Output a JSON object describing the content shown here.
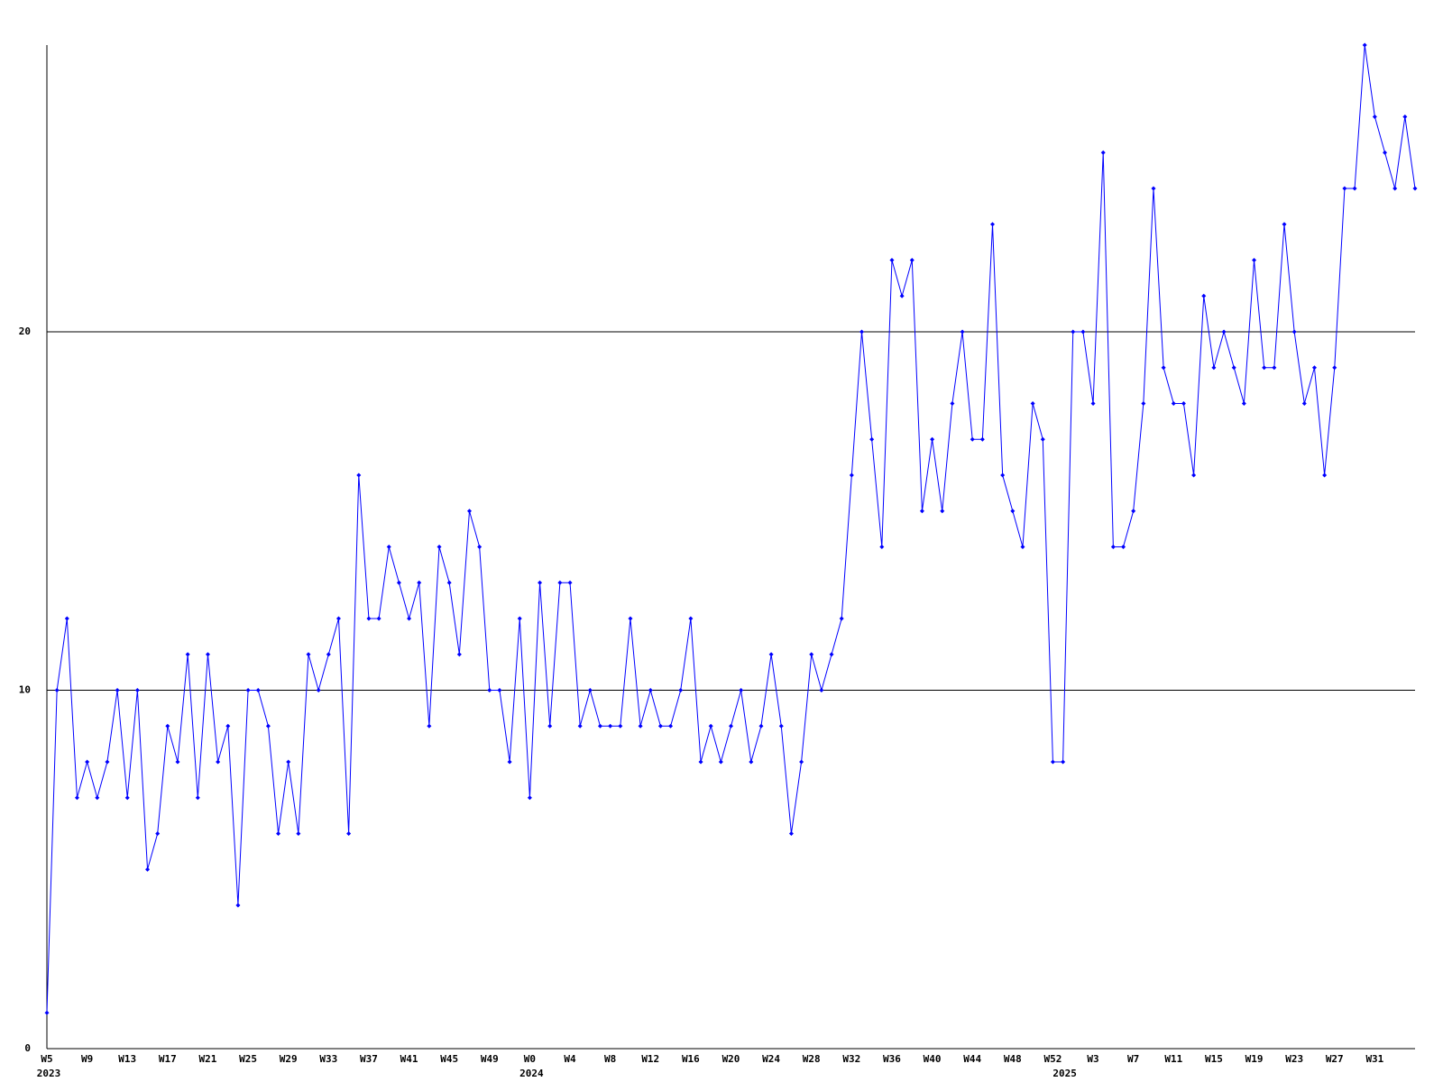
{
  "chart_data": {
    "type": "line",
    "categories": [
      "W5",
      null,
      null,
      null,
      "W9",
      null,
      null,
      null,
      "W13",
      null,
      null,
      null,
      "W17",
      null,
      null,
      null,
      "W21",
      null,
      null,
      null,
      "W25",
      null,
      null,
      null,
      "W29",
      null,
      null,
      null,
      "W33",
      null,
      null,
      null,
      "W37",
      null,
      null,
      null,
      "W41",
      null,
      null,
      null,
      "W45",
      null,
      null,
      null,
      "W49",
      null,
      null,
      null,
      "W0",
      null,
      null,
      null,
      "W4",
      null,
      null,
      null,
      "W8",
      null,
      null,
      null,
      "W12",
      null,
      null,
      null,
      "W16",
      null,
      null,
      null,
      "W20",
      null,
      null,
      null,
      "W24",
      null,
      null,
      null,
      "W28",
      null,
      null,
      null,
      "W32",
      null,
      null,
      null,
      "W36",
      null,
      null,
      null,
      "W40",
      null,
      null,
      null,
      "W44",
      null,
      null,
      null,
      "W48",
      null,
      null,
      null,
      "W52",
      null,
      null,
      null,
      "W3",
      null,
      null,
      null,
      "W7",
      null,
      null,
      null,
      "W11",
      null,
      null,
      null,
      "W15",
      null,
      null,
      null,
      "W19",
      null,
      null,
      null,
      "W23",
      null,
      null,
      null,
      "W27",
      null,
      null,
      null,
      "W31",
      null,
      null,
      null,
      null
    ],
    "year_labels": [
      "2023",
      null,
      null,
      null,
      null,
      null,
      null,
      null,
      null,
      null,
      null,
      null,
      null,
      null,
      null,
      null,
      null,
      null,
      null,
      null,
      null,
      null,
      null,
      null,
      null,
      null,
      null,
      null,
      null,
      null,
      null,
      null,
      null,
      null,
      null,
      null,
      null,
      null,
      null,
      null,
      null,
      null,
      null,
      null,
      null,
      null,
      null,
      null,
      "2024",
      null,
      null,
      null,
      null,
      null,
      null,
      null,
      null,
      null,
      null,
      null,
      null,
      null,
      null,
      null,
      null,
      null,
      null,
      null,
      null,
      null,
      null,
      null,
      null,
      null,
      null,
      null,
      null,
      null,
      null,
      null,
      null,
      null,
      null,
      null,
      null,
      null,
      null,
      null,
      null,
      null,
      null,
      null,
      null,
      null,
      null,
      null,
      null,
      null,
      null,
      null,
      null,
      "2025",
      null,
      null,
      null,
      null,
      null,
      null,
      null,
      null,
      null,
      null,
      null,
      null,
      null,
      null,
      null,
      null,
      null,
      null,
      null,
      null,
      null,
      null,
      null,
      null,
      null,
      null,
      null,
      null,
      null,
      null,
      null,
      null,
      null,
      null
    ],
    "series": [
      {
        "color": "#0000ff",
        "values": [
          1,
          10,
          12,
          7,
          8,
          7,
          8,
          10,
          7,
          10,
          5,
          6,
          9,
          8,
          11,
          7,
          11,
          8,
          9,
          4,
          10,
          10,
          9,
          6,
          8,
          6,
          11,
          10,
          11,
          12,
          6,
          16,
          12,
          12,
          14,
          13,
          12,
          13,
          9,
          14,
          13,
          11,
          15,
          14,
          10,
          10,
          8,
          12,
          7,
          13,
          9,
          13,
          13,
          9,
          10,
          9,
          9,
          9,
          12,
          9,
          10,
          9,
          9,
          10,
          12,
          8,
          9,
          8,
          9,
          10,
          8,
          9,
          11,
          9,
          6,
          8,
          11,
          10,
          11,
          12,
          16,
          20,
          17,
          14,
          22,
          21,
          22,
          15,
          17,
          15,
          18,
          20,
          17,
          17,
          23,
          16,
          15,
          14,
          18,
          17,
          8,
          8,
          20,
          20,
          18,
          25,
          14,
          14,
          15,
          18,
          24,
          19,
          18,
          18,
          16,
          21,
          19,
          20,
          19,
          18,
          22,
          19,
          19,
          23,
          20,
          18,
          19,
          16,
          19,
          24,
          24,
          28,
          26,
          25,
          24,
          26,
          24
        ]
      }
    ],
    "ylim": [
      0,
      28
    ],
    "yticks": [
      0,
      10,
      20
    ],
    "grid": true
  }
}
